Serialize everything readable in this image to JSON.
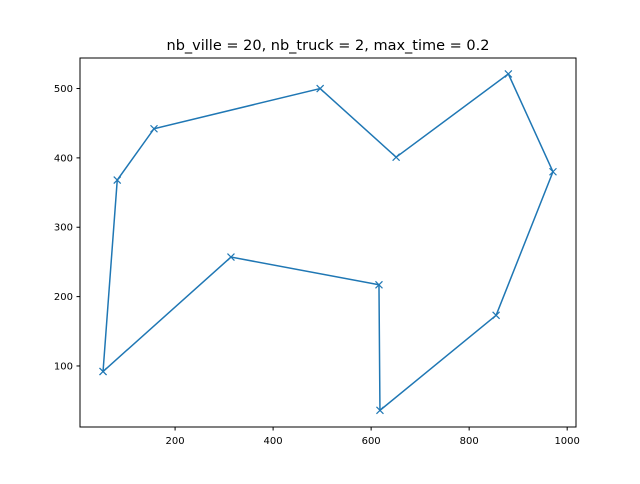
{
  "chart_data": {
    "type": "line",
    "title": "nb_ville = 20, nb_truck = 2, max_time = 0.2",
    "xlabel": "",
    "ylabel": "",
    "xlim": [
      6,
      1018
    ],
    "ylim": [
      12,
      544
    ],
    "xticks": [
      200,
      400,
      600,
      800,
      1000
    ],
    "yticks": [
      100,
      200,
      300,
      400,
      500
    ],
    "grid": false,
    "marker": "x",
    "color": "#1f77b4",
    "series": [
      {
        "x": [
          53,
          82,
          157,
          496,
          651,
          880,
          971,
          855,
          618,
          616,
          314,
          53
        ],
        "y": [
          92,
          368,
          442,
          500,
          401,
          521,
          380,
          173,
          36,
          217,
          257,
          92
        ]
      }
    ]
  }
}
